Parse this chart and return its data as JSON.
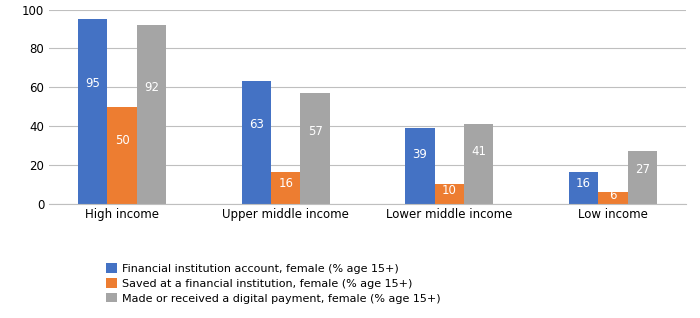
{
  "categories": [
    "High income",
    "Upper middle income",
    "Lower middle income",
    "Low income"
  ],
  "series": [
    {
      "name": "Financial institution account, female (% age 15+)",
      "values": [
        95,
        63,
        39,
        16
      ],
      "color": "#4472C4"
    },
    {
      "name": "Saved at a financial institution, female (% age 15+)",
      "values": [
        50,
        16,
        10,
        6
      ],
      "color": "#ED7D31"
    },
    {
      "name": "Made or received a digital payment, female (% age 15+)",
      "values": [
        92,
        57,
        41,
        27
      ],
      "color": "#A5A5A5"
    }
  ],
  "ylim": [
    0,
    100
  ],
  "yticks": [
    0,
    20,
    40,
    60,
    80,
    100
  ],
  "bar_width": 0.18,
  "background_color": "#FFFFFF",
  "grid_color": "#BFBFBF",
  "tick_fontsize": 8.5,
  "legend_fontsize": 8,
  "value_fontsize": 8.5,
  "value_color_white": "#FFFFFF",
  "value_color_dark": "#595959"
}
